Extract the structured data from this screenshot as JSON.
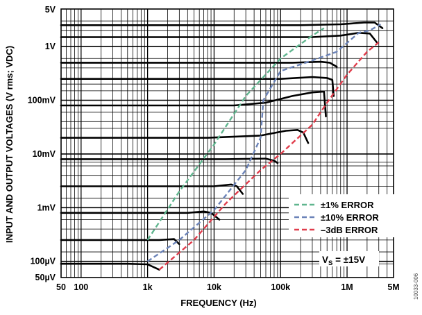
{
  "chart_data": {
    "type": "line",
    "xlabel": "FREQUENCY (Hz)",
    "ylabel": "INPUT AND OUTPUT VOLTAGES (V rms; VDC)",
    "x_scale": "log",
    "y_scale": "log",
    "xlim": [
      50,
      5000000
    ],
    "ylim": [
      5e-05,
      5
    ],
    "grid": true,
    "x_ticks": [
      {
        "value": 50,
        "label": "50"
      },
      {
        "value": 100,
        "label": "100"
      },
      {
        "value": 1000,
        "label": "1k"
      },
      {
        "value": 10000,
        "label": "10k"
      },
      {
        "value": 100000,
        "label": "100k"
      },
      {
        "value": 1000000,
        "label": "1M"
      },
      {
        "value": 5000000,
        "label": "5M"
      }
    ],
    "y_ticks": [
      {
        "value": 5,
        "label": "5V"
      },
      {
        "value": 1,
        "label": "1V"
      },
      {
        "value": 0.1,
        "label": "100mV"
      },
      {
        "value": 0.01,
        "label": "10mV"
      },
      {
        "value": 0.001,
        "label": "1mV"
      },
      {
        "value": 0.0001,
        "label": "100µV"
      },
      {
        "value": 5e-05,
        "label": "50µV"
      }
    ],
    "grid_y_levels": [
      3,
      2,
      0.6,
      0.4,
      0.2,
      0.15,
      0.08,
      0.06,
      0.04,
      0.03,
      0.007,
      0.006,
      0.004,
      0.0025,
      0.0015,
      0.0008,
      0.0006,
      0.0004,
      0.00025,
      0.00015,
      9e-05
    ],
    "response_curves": [
      {
        "points": [
          [
            50,
            2.5
          ],
          [
            200000,
            2.5
          ],
          [
            800000,
            2.6
          ],
          [
            1800000,
            2.8
          ],
          [
            2600000,
            2.8
          ],
          [
            3400000,
            2.2
          ]
        ]
      },
      {
        "points": [
          [
            50,
            1.5
          ],
          [
            300000,
            1.5
          ],
          [
            800000,
            1.6
          ],
          [
            1500000,
            1.8
          ],
          [
            2200000,
            1.75
          ],
          [
            2800000,
            1.2
          ]
        ]
      },
      {
        "points": [
          [
            50,
            0.5
          ],
          [
            150000,
            0.5
          ],
          [
            400000,
            0.52
          ],
          [
            550000,
            0.5
          ],
          [
            700000,
            0.42
          ]
        ]
      },
      {
        "points": [
          [
            50,
            0.25
          ],
          [
            100000,
            0.25
          ],
          [
            300000,
            0.27
          ],
          [
            500000,
            0.26
          ],
          [
            600000,
            0.24
          ],
          [
            630000,
            0.12
          ]
        ]
      },
      {
        "points": [
          [
            50,
            0.08
          ],
          [
            20000,
            0.08
          ],
          [
            60000,
            0.09
          ],
          [
            150000,
            0.12
          ],
          [
            300000,
            0.14
          ],
          [
            450000,
            0.145
          ],
          [
            480000,
            0.05
          ]
        ]
      },
      {
        "points": [
          [
            50,
            0.02
          ],
          [
            8000,
            0.02
          ],
          [
            50000,
            0.022
          ],
          [
            120000,
            0.027
          ],
          [
            180000,
            0.028
          ],
          [
            220000,
            0.025
          ],
          [
            260000,
            0.016
          ]
        ]
      },
      {
        "points": [
          [
            50,
            0.008
          ],
          [
            15000,
            0.008
          ],
          [
            60000,
            0.0082
          ],
          [
            80000,
            0.0075
          ],
          [
            90000,
            0.0068
          ]
        ]
      },
      {
        "points": [
          [
            50,
            0.0025
          ],
          [
            10000,
            0.0025
          ],
          [
            18000,
            0.0027
          ],
          [
            22000,
            0.0025
          ],
          [
            27000,
            0.0018
          ]
        ]
      },
      {
        "points": [
          [
            50,
            0.0008
          ],
          [
            4000,
            0.0008
          ],
          [
            7000,
            0.00085
          ],
          [
            9000,
            0.0008
          ],
          [
            12000,
            0.0006
          ]
        ]
      },
      {
        "points": [
          [
            50,
            0.00025
          ],
          [
            1500,
            0.00025
          ],
          [
            2500,
            0.00026
          ],
          [
            3000,
            0.00021
          ]
        ]
      },
      {
        "points": [
          [
            50,
            9e-05
          ],
          [
            500,
            9e-05
          ],
          [
            1000,
            8.8e-05
          ],
          [
            1500,
            7e-05
          ]
        ]
      }
    ],
    "series": [
      {
        "name": "±1% ERROR",
        "color": "#5fb58e",
        "points": [
          [
            1000,
            0.00025
          ],
          [
            3000,
            0.002
          ],
          [
            10000,
            0.015
          ],
          [
            30000,
            0.12
          ],
          [
            100000,
            0.6
          ],
          [
            300000,
            1.6
          ],
          [
            450000,
            2.2
          ]
        ]
      },
      {
        "name": "±10% ERROR",
        "color": "#6b83b8",
        "points": [
          [
            1000,
            0.0001
          ],
          [
            3000,
            0.00025
          ],
          [
            10000,
            0.0009
          ],
          [
            30000,
            0.005
          ],
          [
            50000,
            0.02
          ],
          [
            55000,
            0.1
          ],
          [
            100000,
            0.35
          ],
          [
            300000,
            0.55
          ],
          [
            700000,
            0.8
          ],
          [
            1500000,
            1.8
          ],
          [
            2200000,
            2.0
          ],
          [
            3200000,
            2.6
          ]
        ]
      },
      {
        "name": "–3dB ERROR",
        "color": "#e03c4b",
        "points": [
          [
            1500,
            7e-05
          ],
          [
            5000,
            0.00025
          ],
          [
            15000,
            0.0012
          ],
          [
            50000,
            0.005
          ],
          [
            100000,
            0.01
          ],
          [
            300000,
            0.035
          ],
          [
            500000,
            0.09
          ],
          [
            1000000,
            0.3
          ],
          [
            2000000,
            0.8
          ],
          [
            3000000,
            1.2
          ]
        ]
      }
    ],
    "legend": {
      "position": "lower-right",
      "entries": [
        "±1% ERROR",
        "±10% ERROR",
        "–3dB ERROR"
      ]
    },
    "annotation": {
      "prefix": "V",
      "subscript": "S",
      "suffix": " = ±15V"
    },
    "figure_id": "10033-006"
  }
}
